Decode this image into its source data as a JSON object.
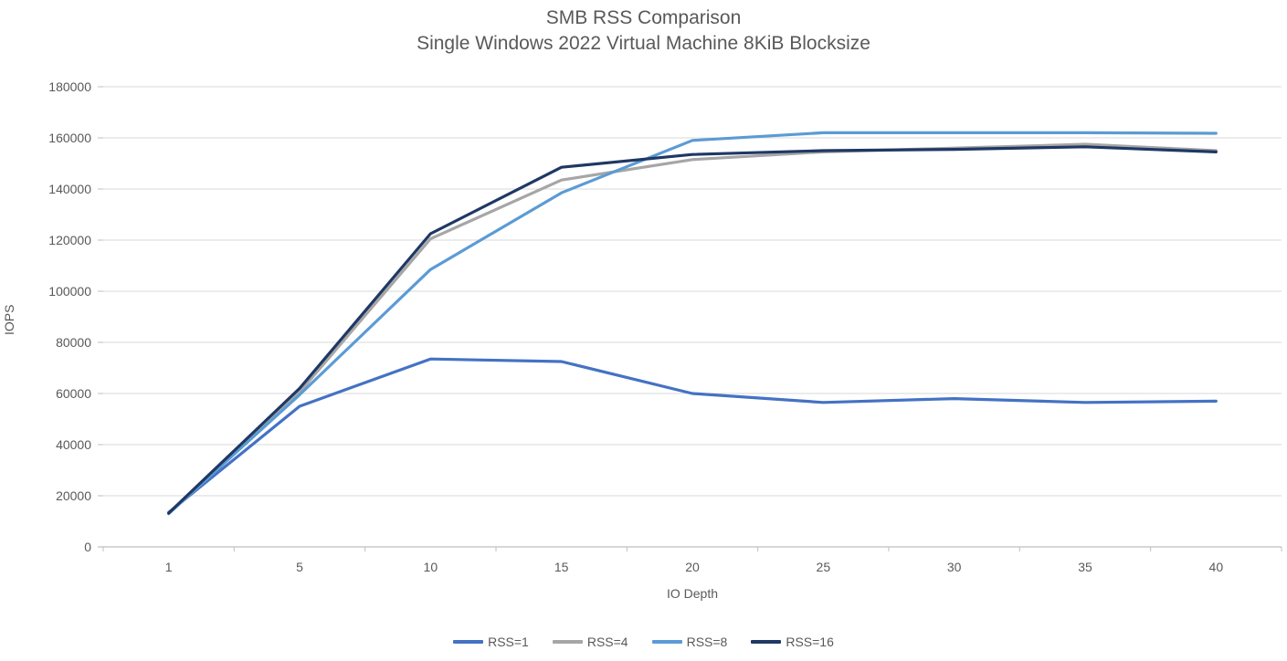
{
  "chart": {
    "title_line1": "SMB RSS Comparison",
    "title_line2": "Single Windows 2022 Virtual Machine 8KiB Blocksize",
    "ylabel": "IOPS",
    "xlabel": "IO Depth"
  },
  "chart_data": {
    "type": "line",
    "title": "SMB RSS Comparison",
    "subtitle": "Single Windows 2022 Virtual Machine 8KiB Blocksize",
    "xlabel": "IO Depth",
    "ylabel": "IOPS",
    "x_axis_type": "categorical",
    "categories": [
      1,
      5,
      10,
      15,
      20,
      25,
      30,
      35,
      40
    ],
    "ylim": [
      0,
      180000
    ],
    "ytick_step": 20000,
    "grid": "horizontal",
    "legend_position": "bottom",
    "series": [
      {
        "name": "RSS=1",
        "color": "#4472C4",
        "values": [
          13500,
          55000,
          73500,
          72500,
          60000,
          56500,
          58000,
          56500,
          57000
        ]
      },
      {
        "name": "RSS=4",
        "color": "#A6A6A6",
        "values": [
          13000,
          60500,
          120500,
          143500,
          151500,
          154500,
          156000,
          157500,
          155000
        ]
      },
      {
        "name": "RSS=8",
        "color": "#5B9BD5",
        "values": [
          13000,
          59500,
          108500,
          138500,
          159000,
          162000,
          162000,
          162000,
          161800
        ]
      },
      {
        "name": "RSS=16",
        "color": "#1F3864",
        "values": [
          13200,
          62000,
          122500,
          148500,
          153500,
          155000,
          155500,
          156500,
          154500
        ]
      }
    ],
    "colors": {
      "gridline": "#D9D9D9",
      "axis": "#BFBFBF",
      "text": "#595959",
      "background": "#FFFFFF"
    }
  }
}
